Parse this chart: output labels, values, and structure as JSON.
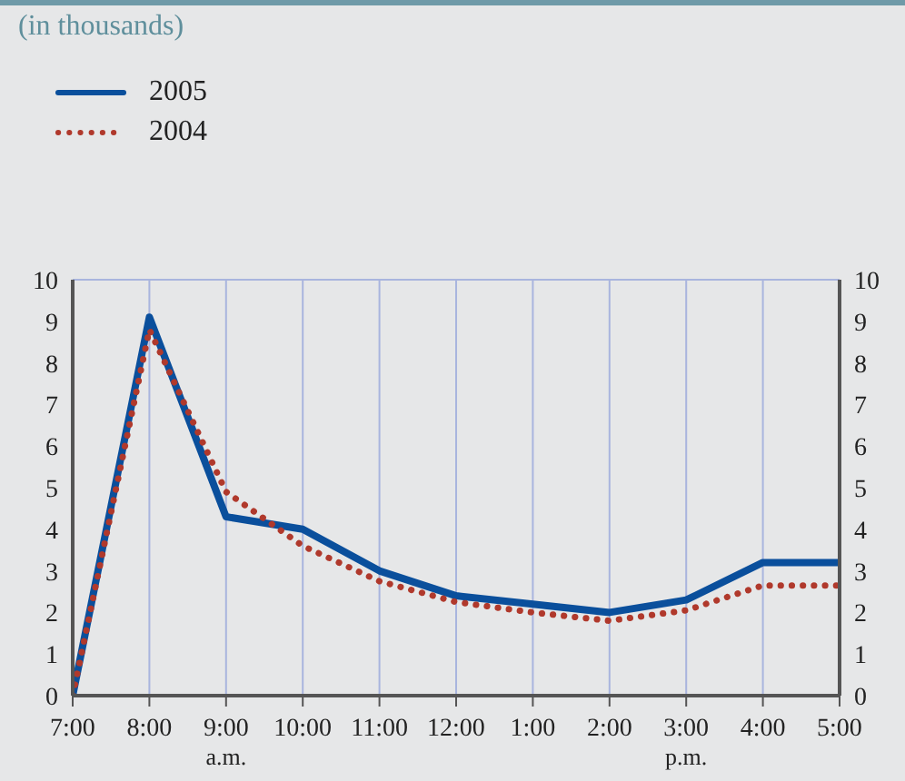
{
  "chart_data": {
    "type": "line",
    "title": "(in thousands)",
    "categories": [
      "7:00",
      "8:00",
      "9:00",
      "10:00",
      "11:00",
      "12:00",
      "1:00",
      "2:00",
      "3:00",
      "4:00",
      "5:00"
    ],
    "series": [
      {
        "name": "2005",
        "color": "#0a4f9c",
        "line_style": "solid",
        "values": [
          0,
          9.1,
          4.3,
          4.0,
          3.0,
          2.4,
          2.2,
          2.0,
          2.3,
          3.2,
          3.2
        ]
      },
      {
        "name": "2004",
        "color": "#b0392c",
        "line_style": "dotted",
        "values": [
          0,
          8.8,
          4.9,
          3.6,
          2.75,
          2.25,
          2.0,
          1.8,
          2.05,
          2.65,
          2.65
        ]
      }
    ],
    "ylim": [
      0,
      10
    ],
    "yticks": [
      0,
      1,
      2,
      3,
      4,
      5,
      6,
      7,
      8,
      9,
      10
    ],
    "y2lim": [
      0,
      10
    ],
    "y2ticks": [
      0,
      1,
      2,
      3,
      4,
      5,
      6,
      7,
      8,
      9,
      10
    ],
    "grid": true,
    "legend": "top left",
    "marker": "none",
    "annotations": [
      "a.m.",
      "p.m."
    ]
  }
}
